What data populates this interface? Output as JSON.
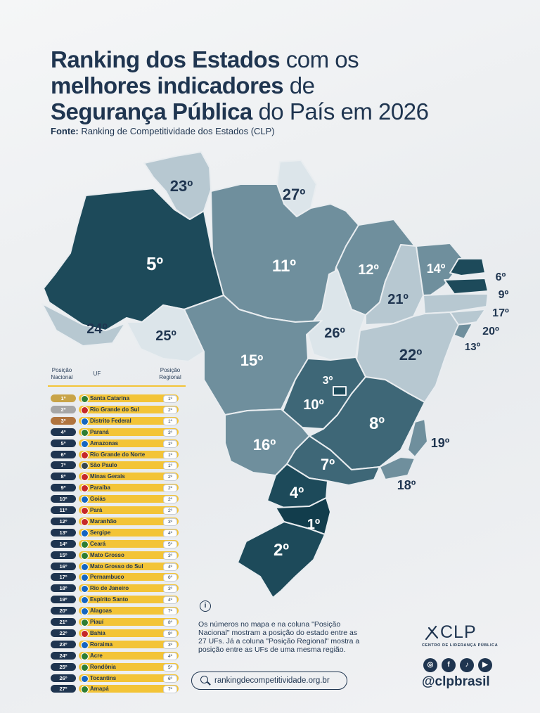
{
  "title": {
    "part1_bold": "Ranking dos Estados",
    "part1_regular": " com os",
    "part2_bold": "melhores indicadores",
    "part2_regular": " de",
    "part3_bold": "Segurança Pública",
    "part3_regular": " do País em 2026"
  },
  "source": {
    "label": "Fonte:",
    "text": " Ranking de Competitividade dos Estados (CLP)"
  },
  "map_labels": [
    "5º",
    "23º",
    "27º",
    "11º",
    "12º",
    "14º",
    "6º",
    "9º",
    "17º",
    "20º",
    "13º",
    "21º",
    "24º",
    "25º",
    "26º",
    "22º",
    "15º",
    "3º",
    "10º",
    "8º",
    "19º",
    "16º",
    "7º",
    "18º",
    "4º",
    "1º",
    "2º"
  ],
  "colors": {
    "navy": "#1f3550",
    "tier1": "#1d4a5a",
    "tier2": "#3e6777",
    "tier3": "#6f8f9d",
    "tier4": "#b7c8d1",
    "accent_yellow": "#f3c437",
    "gold": "#c9a447",
    "silver": "#a6a6a6",
    "bronze": "#b0743e"
  },
  "table": {
    "col_national": "Posição Nacional",
    "col_uf": "UF",
    "col_regional": "Posição Regional",
    "rows": [
      {
        "pos": "1º",
        "uf": "Santa Catarina",
        "reg": "1º"
      },
      {
        "pos": "2º",
        "uf": "Rio Grande do Sul",
        "reg": "2º"
      },
      {
        "pos": "3º",
        "uf": "Distrito Federal",
        "reg": "1º"
      },
      {
        "pos": "4º",
        "uf": "Paraná",
        "reg": "3º"
      },
      {
        "pos": "5º",
        "uf": "Amazonas",
        "reg": "1º"
      },
      {
        "pos": "6º",
        "uf": "Rio Grande do Norte",
        "reg": "1º"
      },
      {
        "pos": "7º",
        "uf": "São Paulo",
        "reg": "1º"
      },
      {
        "pos": "8º",
        "uf": "Minas Gerais",
        "reg": "2º"
      },
      {
        "pos": "9º",
        "uf": "Paraíba",
        "reg": "2º"
      },
      {
        "pos": "10º",
        "uf": "Goiás",
        "reg": "2º"
      },
      {
        "pos": "11º",
        "uf": "Pará",
        "reg": "2º"
      },
      {
        "pos": "12º",
        "uf": "Maranhão",
        "reg": "3º"
      },
      {
        "pos": "13º",
        "uf": "Sergipe",
        "reg": "4º"
      },
      {
        "pos": "14º",
        "uf": "Ceará",
        "reg": "5º"
      },
      {
        "pos": "15º",
        "uf": "Mato Grosso",
        "reg": "3º"
      },
      {
        "pos": "16º",
        "uf": "Mato Grosso do Sul",
        "reg": "4º"
      },
      {
        "pos": "17º",
        "uf": "Pernambuco",
        "reg": "6º"
      },
      {
        "pos": "18º",
        "uf": "Rio de Janeiro",
        "reg": "3º"
      },
      {
        "pos": "19º",
        "uf": "Espírito Santo",
        "reg": "4º"
      },
      {
        "pos": "20º",
        "uf": "Alagoas",
        "reg": "7º"
      },
      {
        "pos": "21º",
        "uf": "Piauí",
        "reg": "8º"
      },
      {
        "pos": "22º",
        "uf": "Bahia",
        "reg": "9º"
      },
      {
        "pos": "23º",
        "uf": "Roraima",
        "reg": "3º"
      },
      {
        "pos": "24º",
        "uf": "Acre",
        "reg": "4º"
      },
      {
        "pos": "25º",
        "uf": "Rondônia",
        "reg": "5º"
      },
      {
        "pos": "26º",
        "uf": "Tocantins",
        "reg": "6º"
      },
      {
        "pos": "27º",
        "uf": "Amapá",
        "reg": "7º"
      }
    ]
  },
  "info": {
    "icon": "info-icon",
    "text": "Os números no mapa e na coluna \"Posição Nacional\" mostram a posição do estado entre as 27 UFs. Já a coluna \"Posição Regional\" mostra a posição entre as UFs de uma mesma região."
  },
  "website": "rankingdecompetitividade.org.br",
  "logo": {
    "name": "CLP",
    "subtitle": "CENTRO DE LIDERANÇA PÚBLICA"
  },
  "social": {
    "icons": [
      "instagram-icon",
      "facebook-icon",
      "tiktok-icon",
      "youtube-icon"
    ],
    "handle": "@clpbrasil"
  }
}
